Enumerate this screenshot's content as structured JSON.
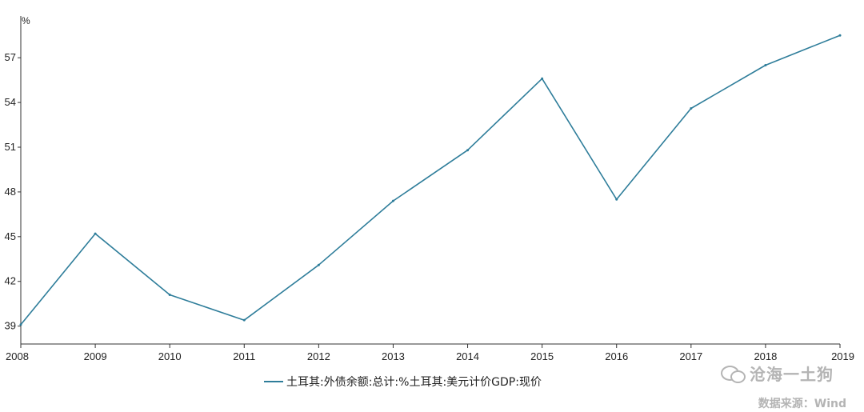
{
  "chart_data": {
    "type": "line",
    "x": [
      "2008",
      "2009",
      "2010",
      "2011",
      "2012",
      "2013",
      "2014",
      "2015",
      "2016",
      "2017",
      "2018",
      "2019"
    ],
    "series": [
      {
        "name": "土耳其:外债余额:总计:%土耳其:美元计价GDP:现价",
        "values": [
          39.1,
          45.2,
          41.1,
          39.4,
          43.1,
          47.4,
          50.8,
          55.6,
          47.5,
          53.6,
          56.5,
          58.5
        ],
        "color": "#2e7d9a"
      }
    ],
    "ylabel": "%",
    "yticks": [
      39,
      42,
      45,
      48,
      51,
      54,
      57
    ],
    "ylim": [
      37.8,
      59.8
    ],
    "grid": false,
    "legend_position": "bottom"
  },
  "watermark": {
    "icon": "wechat-icon",
    "text": "沧海一土狗"
  },
  "source": "数据来源：Wind"
}
